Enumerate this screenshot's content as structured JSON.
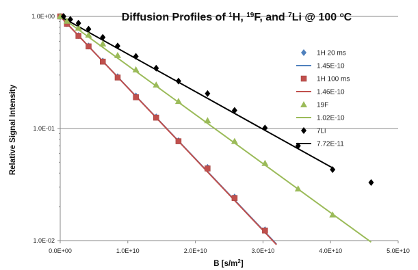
{
  "chart_data": {
    "type": "scatter",
    "title_parts": [
      "Diffusion Profiles of ",
      "1",
      "H, ",
      "19",
      "F, and ",
      "7",
      "Li @ 100 ",
      "o",
      "C"
    ],
    "xlabel": "B [s/m",
    "xlabel_sup": "2",
    "xlabel_end": "]",
    "ylabel": "Relative Signal Intensity",
    "xlim": [
      0,
      50000000000.0
    ],
    "ylim": [
      0.01,
      1
    ],
    "yscale": "log",
    "x_ticks": [
      "0.0E+00",
      "1.0E+10",
      "2.0E+10",
      "3.0E+10",
      "4.0E+10",
      "5.0E+10"
    ],
    "y_ticks": [
      "1.0E+00",
      "1.0E-01",
      "1.0E-02"
    ],
    "legend_position": "right",
    "series": [
      {
        "name": "1H 20 ms",
        "kind": "points",
        "marker": "diamond",
        "color": "#4f81bd",
        "x": [
          0,
          1000000000.0,
          2700000000.0,
          4200000000.0,
          6300000000.0,
          8500000000.0,
          11200000000.0,
          14200000000.0,
          17500000000.0,
          21800000000.0,
          25800000000.0,
          30300000000.0
        ],
        "y": [
          1.0,
          0.86,
          0.675,
          0.545,
          0.4,
          0.29,
          0.195,
          0.127,
          0.078,
          0.045,
          0.0245,
          0.0125
        ]
      },
      {
        "name": "1.45E-10",
        "kind": "line",
        "color": "#4f81bd",
        "x": [
          0,
          32000000000.0
        ],
        "y": [
          1.0,
          0.0093
        ]
      },
      {
        "name": "1H 100 ms",
        "kind": "points",
        "marker": "square",
        "color": "#c0504d",
        "x": [
          0,
          1000000000.0,
          2700000000.0,
          4200000000.0,
          6300000000.0,
          8500000000.0,
          11200000000.0,
          14200000000.0,
          17500000000.0,
          21800000000.0,
          25800000000.0,
          30300000000.0
        ],
        "y": [
          1.0,
          0.86,
          0.67,
          0.54,
          0.395,
          0.285,
          0.19,
          0.125,
          0.077,
          0.044,
          0.024,
          0.0123
        ]
      },
      {
        "name": "1.46E-10",
        "kind": "line",
        "color": "#c0504d",
        "x": [
          0,
          32000000000.0
        ],
        "y": [
          1.0,
          0.0092
        ]
      },
      {
        "name": "19F",
        "kind": "points",
        "marker": "triangle",
        "color": "#9bbb59",
        "x": [
          0,
          1000000000.0,
          2700000000.0,
          4200000000.0,
          6300000000.0,
          8500000000.0,
          11200000000.0,
          14200000000.0,
          17500000000.0,
          21800000000.0,
          25800000000.0,
          30300000000.0,
          35200000000.0,
          40300000000.0
        ],
        "y": [
          1.0,
          0.91,
          0.79,
          0.685,
          0.57,
          0.45,
          0.335,
          0.245,
          0.175,
          0.118,
          0.077,
          0.049,
          0.029,
          0.017
        ]
      },
      {
        "name": "1.02E-10",
        "kind": "line",
        "color": "#9bbb59",
        "x": [
          0,
          46000000000.0
        ],
        "y": [
          1.0,
          0.0097
        ]
      },
      {
        "name": "7Li",
        "kind": "points",
        "marker": "diamond",
        "color": "#000000",
        "x": [
          500000000.0,
          1500000000.0,
          2700000000.0,
          4200000000.0,
          6300000000.0,
          8500000000.0,
          11200000000.0,
          14200000000.0,
          17500000000.0,
          21800000000.0,
          25800000000.0,
          30300000000.0,
          35200000000.0,
          40300000000.0,
          46000000000.0
        ],
        "y": [
          1.0,
          0.94,
          0.87,
          0.77,
          0.65,
          0.545,
          0.44,
          0.345,
          0.265,
          0.205,
          0.145,
          0.101,
          0.07,
          0.043,
          0.033
        ]
      },
      {
        "name": "7.72E-11",
        "kind": "line",
        "color": "#000000",
        "x": [
          0,
          40300000000.0
        ],
        "y": [
          1.0,
          0.0445
        ]
      }
    ]
  }
}
